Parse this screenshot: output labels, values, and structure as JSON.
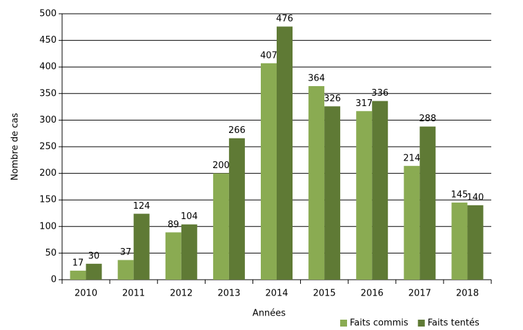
{
  "chart_data": {
    "type": "bar",
    "xlabel": "Années",
    "ylabel": "Nombre de cas",
    "categories": [
      "2010",
      "2011",
      "2012",
      "2013",
      "2014",
      "2015",
      "2016",
      "2017",
      "2018"
    ],
    "series": [
      {
        "name": "Faits commis",
        "color": "#8aab52",
        "values": [
          17,
          37,
          89,
          200,
          407,
          364,
          317,
          214,
          145
        ]
      },
      {
        "name": "Faits tentés",
        "color": "#5f7a35",
        "values": [
          30,
          124,
          104,
          266,
          476,
          326,
          336,
          288,
          140
        ]
      }
    ],
    "ylim": [
      0,
      500
    ],
    "yticks": [
      0,
      50,
      100,
      150,
      200,
      250,
      300,
      350,
      400,
      450,
      500
    ],
    "grid": true,
    "legend": "bottom-right"
  }
}
